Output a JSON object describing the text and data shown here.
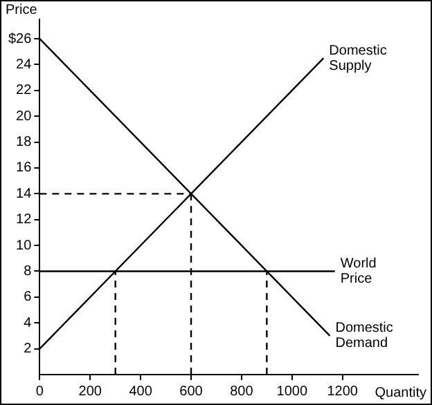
{
  "chart_data": {
    "type": "line",
    "xlabel": "Quantity",
    "ylabel": "Price",
    "xlim": [
      0,
      1500
    ],
    "xticks": [
      0,
      200,
      400,
      600,
      800,
      1000,
      1200
    ],
    "ylim": [
      0,
      27.5
    ],
    "yticks": [
      2,
      4,
      6,
      8,
      10,
      12,
      14,
      16,
      18,
      20,
      22,
      24,
      {
        "value": 26,
        "label": "$26"
      }
    ],
    "grid": false,
    "legend": false,
    "marker": "none",
    "series": [
      {
        "name": "Domestic Supply",
        "color": "#000000",
        "x": [
          0,
          1125
        ],
        "values": [
          2,
          24.5
        ]
      },
      {
        "name": "Domestic Demand",
        "color": "#000000",
        "x": [
          0,
          1150
        ],
        "values": [
          26,
          3
        ]
      },
      {
        "name": "World Price",
        "color": "#000000",
        "x": [
          0,
          1170
        ],
        "values": [
          8,
          8
        ]
      },
      {
        "color": "#000000",
        "line_style": "dashed",
        "x": [
          0,
          600
        ],
        "values": [
          14,
          14
        ]
      },
      {
        "color": "#000000",
        "line_style": "dashed",
        "x": [
          600,
          600
        ],
        "values": [
          0,
          14
        ]
      },
      {
        "color": "#000000",
        "line_style": "dashed",
        "x": [
          300,
          300
        ],
        "values": [
          0,
          8
        ]
      },
      {
        "color": "#000000",
        "line_style": "dashed",
        "x": [
          900,
          900
        ],
        "values": [
          0,
          8
        ]
      }
    ]
  }
}
